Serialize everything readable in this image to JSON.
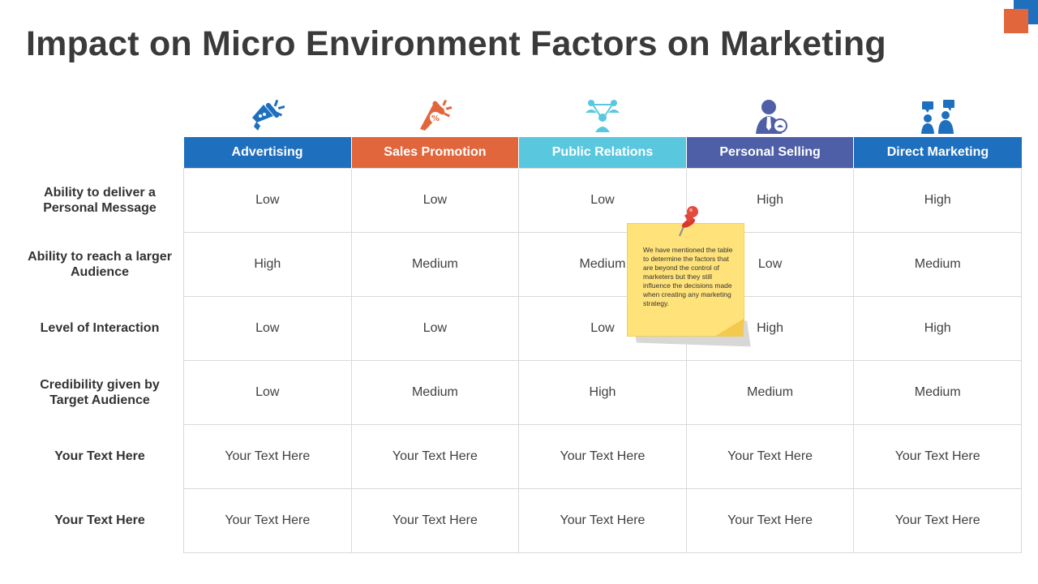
{
  "title": "Impact on Micro Environment Factors on Marketing",
  "colors": {
    "advertising": "#1F6FBF",
    "sales_promotion": "#E2663B",
    "public_relations": "#59C8DF",
    "personal_selling": "#4E5FA8",
    "direct_marketing": "#1F6FBF",
    "accent_orange": "#E2663B"
  },
  "columns": [
    {
      "label": "Advertising",
      "icon": "megaphone-icon",
      "color": "#1F6FBF"
    },
    {
      "label": "Sales Promotion",
      "icon": "discount-megaphone-icon",
      "color": "#E2663B"
    },
    {
      "label": "Public Relations",
      "icon": "people-network-icon",
      "color": "#59C8DF"
    },
    {
      "label": "Personal Selling",
      "icon": "salesperson-icon",
      "color": "#4E5FA8"
    },
    {
      "label": "Direct Marketing",
      "icon": "people-chat-icon",
      "color": "#1F6FBF"
    }
  ],
  "rows": [
    {
      "label": "Ability to deliver a Personal Message",
      "cells": [
        "Low",
        "Low",
        "Low",
        "High",
        "High"
      ]
    },
    {
      "label": "Ability to reach a larger Audience",
      "cells": [
        "High",
        "Medium",
        "Medium",
        "Low",
        "Medium"
      ]
    },
    {
      "label": "Level of Interaction",
      "cells": [
        "Low",
        "Low",
        "Low",
        "High",
        "High"
      ]
    },
    {
      "label": "Credibility given by Target Audience",
      "cells": [
        "Low",
        "Medium",
        "High",
        "Medium",
        "Medium"
      ]
    },
    {
      "label": "Your Text Here",
      "cells": [
        "Your Text Here",
        "Your Text Here",
        "Your Text Here",
        "Your Text Here",
        "Your Text Here"
      ]
    },
    {
      "label": "Your Text Here",
      "cells": [
        "Your Text Here",
        "Your Text Here",
        "Your Text Here",
        "Your Text Here",
        "Your Text Here"
      ]
    }
  ],
  "sticky_note": {
    "text": "We have mentioned the table to determine the factors  that are beyond the control of marketers but they still influence the decisions made when creating any marketing strategy.",
    "icon": "pushpin-icon"
  }
}
